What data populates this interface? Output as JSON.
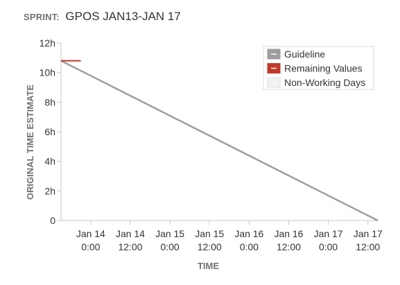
{
  "header": {
    "label": "SPRINT:",
    "sprint_name": "GPOS JAN13-JAN 17"
  },
  "chart_data": {
    "type": "line",
    "title": "",
    "xlabel": "TIME",
    "ylabel": "ORIGINAL TIME ESTIMATE",
    "yunit": "h",
    "ylim": [
      0,
      12
    ],
    "yticks": [
      0,
      2,
      4,
      6,
      8,
      10,
      12
    ],
    "ytick_labels": [
      "0",
      "2h",
      "4h",
      "6h",
      "8h",
      "10h",
      "12h"
    ],
    "xlim": [
      "2020-01-13 15:00",
      "2020-01-17 15:00"
    ],
    "xticks": [
      "2020-01-14 00:00",
      "2020-01-14 12:00",
      "2020-01-15 00:00",
      "2020-01-15 12:00",
      "2020-01-16 00:00",
      "2020-01-16 12:00",
      "2020-01-17 00:00",
      "2020-01-17 12:00"
    ],
    "xtick_labels": [
      [
        "Jan 14",
        "0:00"
      ],
      [
        "Jan 14",
        "12:00"
      ],
      [
        "Jan 15",
        "0:00"
      ],
      [
        "Jan 15",
        "12:00"
      ],
      [
        "Jan 16",
        "0:00"
      ],
      [
        "Jan 16",
        "12:00"
      ],
      [
        "Jan 17",
        "0:00"
      ],
      [
        "Jan 17",
        "12:00"
      ]
    ],
    "series": [
      {
        "name": "Guideline",
        "color": "#9e9e9e",
        "points": [
          [
            "2020-01-13 15:00",
            10.8
          ],
          [
            "2020-01-17 15:00",
            0
          ]
        ]
      },
      {
        "name": "Remaining Values",
        "color": "#c0392b",
        "points": [
          [
            "2020-01-13 15:00",
            10.8
          ],
          [
            "2020-01-13 21:00",
            10.8
          ]
        ]
      }
    ],
    "legend": {
      "position": "top-right",
      "items": [
        {
          "label": "Guideline",
          "color": "#9e9e9e"
        },
        {
          "label": "Remaining Values",
          "color": "#c0392b"
        },
        {
          "label": "Non-Working Days",
          "color": "#f2f2f2"
        }
      ]
    },
    "grid": false
  }
}
